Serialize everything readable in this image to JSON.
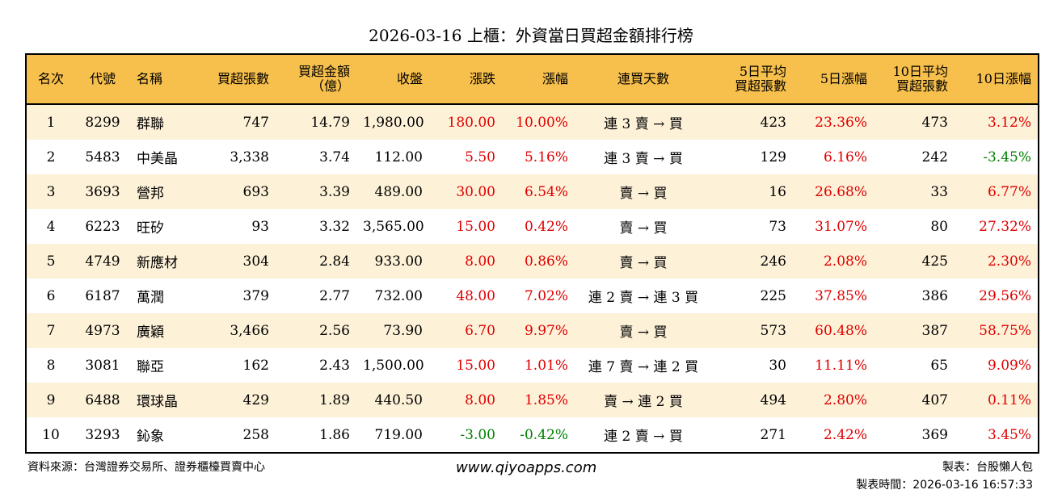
{
  "title": "2026-03-16 上櫃：外資當日買超金額排行榜",
  "columns": [
    "名次",
    "代號",
    "名稱",
    "買超張數",
    "買超金額\n（億）",
    "收盤",
    "漲跌",
    "漲幅",
    "連買天數",
    "5日平均\n買超張數",
    "5日漲幅",
    "10日平均\n買超張數",
    "10日漲幅"
  ],
  "rows": [
    [
      "1",
      "8299",
      "群聯",
      "747",
      "14.79",
      "1,980.00",
      "180.00",
      "10.00%",
      "連 3 賣 → 買",
      "423",
      "23.36%",
      "473",
      "3.12%"
    ],
    [
      "2",
      "5483",
      "中美晶",
      "3,338",
      "3.74",
      "112.00",
      "5.50",
      "5.16%",
      "連 3 賣 → 買",
      "129",
      "6.16%",
      "242",
      "-3.45%"
    ],
    [
      "3",
      "3693",
      "營邦",
      "693",
      "3.39",
      "489.00",
      "30.00",
      "6.54%",
      "賣 → 買",
      "16",
      "26.68%",
      "33",
      "6.77%"
    ],
    [
      "4",
      "6223",
      "旺矽",
      "93",
      "3.32",
      "3,565.00",
      "15.00",
      "0.42%",
      "賣 → 買",
      "73",
      "31.07%",
      "80",
      "27.32%"
    ],
    [
      "5",
      "4749",
      "新應材",
      "304",
      "2.84",
      "933.00",
      "8.00",
      "0.86%",
      "賣 → 買",
      "246",
      "2.08%",
      "425",
      "2.30%"
    ],
    [
      "6",
      "6187",
      "萬潤",
      "379",
      "2.77",
      "732.00",
      "48.00",
      "7.02%",
      "連 2 賣 → 連 3 買",
      "225",
      "37.85%",
      "386",
      "29.56%"
    ],
    [
      "7",
      "4973",
      "廣穎",
      "3,466",
      "2.56",
      "73.90",
      "6.70",
      "9.97%",
      "賣 → 買",
      "573",
      "60.48%",
      "387",
      "58.75%"
    ],
    [
      "8",
      "3081",
      "聯亞",
      "162",
      "2.43",
      "1,500.00",
      "15.00",
      "1.01%",
      "連 7 賣 → 連 2 買",
      "30",
      "11.11%",
      "65",
      "9.09%"
    ],
    [
      "9",
      "6488",
      "環球晶",
      "429",
      "1.89",
      "440.50",
      "8.00",
      "1.85%",
      "賣 → 連 2 買",
      "494",
      "2.80%",
      "407",
      "0.11%"
    ],
    [
      "10",
      "3293",
      "鈊象",
      "258",
      "1.86",
      "719.00",
      "-3.00",
      "-0.42%",
      "連 2 賣 → 買",
      "271",
      "2.42%",
      "369",
      "3.45%"
    ]
  ],
  "footer": {
    "source": "資料來源：台灣證券交易所、證券櫃檯買賣中心",
    "url": "www.qiyoapps.com",
    "maker": "製表：台股懶人包",
    "time": "製表時間：2026-03-16 16:57:33"
  },
  "colors": {
    "header": "#F7BF4B",
    "alt_row": "#FDF1D8",
    "up": "#E00000",
    "down": "#008000"
  }
}
